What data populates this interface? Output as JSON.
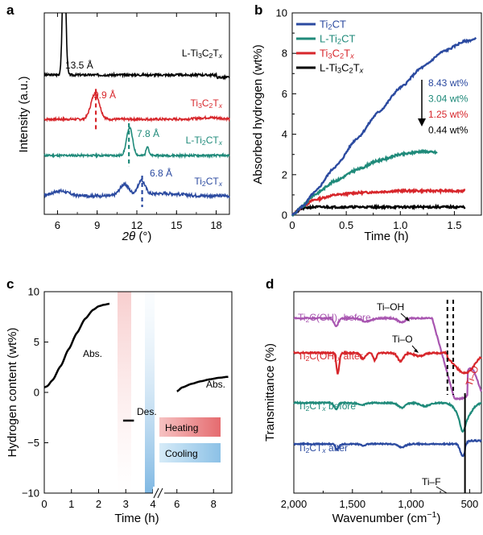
{
  "panels": {
    "a": {
      "letter": "a"
    },
    "b": {
      "letter": "b"
    },
    "c": {
      "letter": "c"
    },
    "d": {
      "letter": "d"
    }
  },
  "chart_data": [
    {
      "id": "a",
      "type": "line",
      "xlabel": "2θ (°)",
      "ylabel": "Intensity (a.u.)",
      "xlim": [
        5,
        19
      ],
      "xticks": [
        "6",
        "9",
        "12",
        "15",
        "18"
      ],
      "series": [
        {
          "name": "L-Ti3C2Tx",
          "color": "#000000",
          "peak": {
            "x": 6.5,
            "label": "13.5 Å"
          }
        },
        {
          "name": "Ti3C2Tx",
          "color": "#d7262b",
          "peak": {
            "x": 8.9,
            "label": "9.9 Å"
          }
        },
        {
          "name": "L-Ti2CTx",
          "color": "#1f8a7a",
          "peak": {
            "x": 11.4,
            "label": "7.8 Å"
          }
        },
        {
          "name": "Ti2CTx",
          "color": "#2b4aa0",
          "peak": {
            "x": 12.4,
            "label": "6.8 Å"
          }
        }
      ]
    },
    {
      "id": "b",
      "type": "line",
      "xlabel": "Time (h)",
      "ylabel": "Absorbed hydrogen (wt%)",
      "xlim": [
        0,
        1.75
      ],
      "ylim": [
        0,
        10
      ],
      "xticks": [
        "0",
        "0.5",
        "1.0",
        "1.5"
      ],
      "yticks": [
        "0",
        "2",
        "4",
        "6",
        "8",
        "10"
      ],
      "legend_position": "top-left",
      "series": [
        {
          "name": "Ti2CT",
          "color": "#2b4aa0",
          "x": [
            0,
            0.1,
            0.2,
            0.4,
            0.6,
            0.8,
            1.0,
            1.2,
            1.4,
            1.6,
            1.7
          ],
          "y": [
            0,
            0.45,
            1.1,
            2.4,
            3.8,
            5.1,
            6.3,
            7.3,
            8.1,
            8.6,
            8.7
          ],
          "final_label": "8.43 wt%"
        },
        {
          "name": "L-Ti2CT",
          "color": "#1f8a7a",
          "x": [
            0,
            0.1,
            0.2,
            0.4,
            0.6,
            0.8,
            1.0,
            1.2,
            1.34
          ],
          "y": [
            0,
            0.45,
            1.0,
            1.7,
            2.25,
            2.7,
            3.0,
            3.15,
            3.1
          ],
          "final_label": "3.04 wt%"
        },
        {
          "name": "Ti3C2Tx",
          "color": "#d7262b",
          "x": [
            0,
            0.1,
            0.2,
            0.4,
            0.6,
            0.8,
            1.0,
            1.2,
            1.6
          ],
          "y": [
            0,
            0.45,
            0.75,
            1.0,
            1.1,
            1.15,
            1.2,
            1.2,
            1.2
          ],
          "final_label": "1.25 wt%"
        },
        {
          "name": "L-Ti3C2Tx",
          "color": "#000000",
          "x": [
            0,
            0.05,
            0.1,
            0.2,
            0.5,
            1.0,
            1.6
          ],
          "y": [
            0,
            0.2,
            0.35,
            0.4,
            0.4,
            0.4,
            0.4
          ],
          "final_label": "0.44 wt%"
        }
      ]
    },
    {
      "id": "c",
      "type": "line",
      "xlabel": "Time (h)",
      "ylabel": "Hydrogen content (wt%)",
      "xlim": [
        0,
        9
      ],
      "ylim": [
        -10,
        10
      ],
      "xticks": [
        "0",
        "1",
        "2",
        "3",
        "4",
        "6",
        "8"
      ],
      "yticks": [
        "10",
        "5",
        "0",
        "−5",
        "−10"
      ],
      "annotations": [
        "Abs.",
        "Des.",
        "Abs."
      ],
      "legend": [
        {
          "label": "Heating",
          "color": "#e8777a"
        },
        {
          "label": "Cooling",
          "color": "#8cc1e6"
        }
      ],
      "series": [
        {
          "name": "hydrogen content",
          "color": "#000000",
          "segments": [
            {
              "x": [
                0.0,
                0.1,
                0.3,
                0.6,
                0.9,
                1.2,
                1.5,
                1.8,
                2.0,
                2.2,
                2.4
              ],
              "y": [
                0.5,
                0.6,
                1.2,
                2.6,
                4.3,
                5.9,
                7.3,
                8.2,
                8.55,
                8.7,
                8.8
              ]
            },
            {
              "x": [
                2.9,
                3.3
              ],
              "y": [
                -2.8,
                -2.8
              ]
            },
            {
              "x": [
                6.0,
                6.3,
                6.8,
                7.3,
                7.8,
                8.3,
                8.8
              ],
              "y": [
                0.1,
                0.5,
                0.85,
                1.1,
                1.3,
                1.45,
                1.55
              ]
            }
          ]
        }
      ]
    },
    {
      "id": "d",
      "type": "line",
      "xlabel": "Wavenumber (cm−1)",
      "ylabel": "Transmittance (%)",
      "xlim": [
        2000,
        400
      ],
      "xticks": [
        "2,000",
        "1,500",
        "1,000",
        "500"
      ],
      "annotations": [
        "Ti–OH",
        "Ti–O",
        "Ti–O",
        "Ti–F"
      ],
      "series": [
        {
          "name": "Ti2C(OH)x before",
          "color": "#a855b0"
        },
        {
          "name": "Ti2C(OH)x after",
          "color": "#d7262b"
        },
        {
          "name": "Ti2CTx before",
          "color": "#1f8a7a"
        },
        {
          "name": "Ti2CTx after",
          "color": "#2b4aa0"
        }
      ]
    }
  ]
}
